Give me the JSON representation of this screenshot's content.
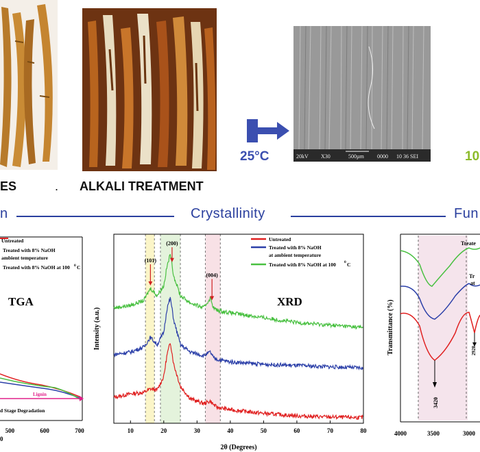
{
  "top_row": {
    "left_caption": "ES",
    "left_caption_suffix": ".",
    "alkali_caption": "ALKALI TREATMENT",
    "temp_25": "25°C",
    "temp_right": "10",
    "sem_scale": {
      "voltage": "20kV",
      "mag": "X30",
      "bar": "500µm",
      "code": "0000",
      "label": "10 36 SEI"
    }
  },
  "sections": {
    "left": "n",
    "crystallinity": "Crystallinity",
    "right": "Fun"
  },
  "tga": {
    "title": "TGA",
    "legend": [
      "Untreated",
      "Treated with 8% NaOH",
      "ambient temperature",
      "Treated with 8% NaOH at 100",
      "0",
      "C"
    ],
    "lignin_label": "Lignin",
    "stage_label": "d  Stage Degradation",
    "x_ticks": [
      "500",
      "600",
      "700"
    ],
    "x_tick_values": [
      500,
      600,
      700
    ],
    "left_tick": "0"
  },
  "xrd": {
    "title": "XRD",
    "ylabel": "Intensity (a.u.)",
    "xlabel": "2θ (Degrees)",
    "peaks": [
      "(101)",
      "(200)",
      "(004)"
    ],
    "legend": [
      {
        "name": "Untreated",
        "color": "#e02020"
      },
      {
        "name": "Treated with 8% NaOH",
        "color": "#2b3fa8"
      },
      {
        "name": "at ambient temperature",
        "color": ""
      },
      {
        "name": "Treated with 8% NaOH at 100",
        "color": "#48c040"
      },
      {
        "name": "0",
        "color": ""
      },
      {
        "name": "C",
        "color": ""
      }
    ],
    "x_ticks": [
      "10",
      "20",
      "30",
      "40",
      "50",
      "60",
      "70",
      "80"
    ]
  },
  "ftir": {
    "ylabel": "Transmittance (%)",
    "treated_label": "Treate",
    "label_tr": "Tr",
    "label_at": "at",
    "peak_3420": "3420",
    "peak_2928": "2928",
    "x_ticks": [
      "4000",
      "3500",
      "3000"
    ]
  },
  "chart_data": [
    {
      "type": "line",
      "title": "XRD",
      "xlabel": "2θ (Degrees)",
      "ylabel": "Intensity (a.u.)",
      "xlim": [
        5,
        80
      ],
      "x_ticks": [
        10,
        20,
        30,
        40,
        50,
        60,
        70,
        80
      ],
      "peaks_2theta": [
        16,
        22.5,
        34.5
      ],
      "peak_labels": [
        "(101)",
        "(200)",
        "(004)"
      ],
      "series": [
        {
          "name": "Untreated",
          "color": "#e02020",
          "x": [
            5,
            10,
            14,
            16,
            18,
            20,
            21,
            22,
            23,
            25,
            28,
            32,
            34,
            35,
            36,
            40,
            50,
            60,
            70,
            80
          ],
          "y": [
            8.5,
            10,
            10.5,
            12,
            11.5,
            17,
            26,
            31,
            22,
            13,
            8,
            6,
            7,
            5.5,
            4.5,
            3.5,
            2,
            1,
            0.5,
            0.3
          ]
        },
        {
          "name": "Treated with 8% NaOH at ambient temperature",
          "color": "#2b3fa8",
          "x": [
            5,
            10,
            14,
            16,
            18,
            20,
            21,
            22,
            23,
            25,
            28,
            32,
            34,
            35,
            36,
            40,
            50,
            60,
            70,
            80
          ],
          "y": [
            26,
            27,
            29,
            33,
            30,
            35,
            45,
            49,
            40,
            30,
            27,
            25.5,
            27,
            24.5,
            24,
            23,
            22,
            21.5,
            21,
            20.5
          ]
        },
        {
          "name": "Treated with 8% NaOH at 100 °C",
          "color": "#48c040",
          "x": [
            5,
            10,
            14,
            16,
            18,
            20,
            21,
            22,
            23,
            25,
            28,
            32,
            34,
            35,
            36,
            40,
            50,
            60,
            70,
            80
          ],
          "y": [
            45,
            46,
            48,
            53,
            50,
            54,
            62,
            67,
            58,
            50,
            47,
            45,
            49,
            45,
            44,
            43,
            41,
            39,
            38,
            37
          ]
        }
      ]
    }
  ]
}
